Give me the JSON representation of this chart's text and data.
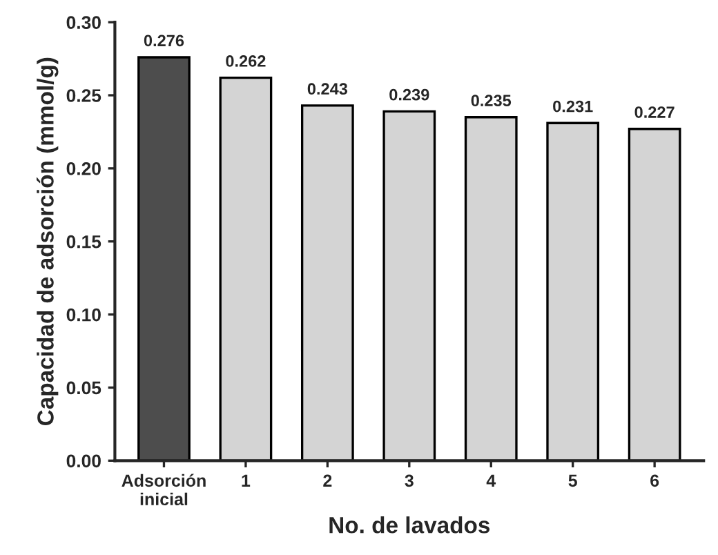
{
  "chart_data": {
    "type": "bar",
    "xlabel": "No. de lavados",
    "ylabel": "Capacidad de adsorción (mmol/g)",
    "categories": [
      "Adsorción\ninicial",
      "1",
      "2",
      "3",
      "4",
      "5",
      "6"
    ],
    "values": [
      0.276,
      0.262,
      0.243,
      0.239,
      0.235,
      0.231,
      0.227
    ],
    "colors": [
      "#4d4d4d",
      "#d4d4d4",
      "#d4d4d4",
      "#d4d4d4",
      "#d4d4d4",
      "#d4d4d4",
      "#d4d4d4"
    ],
    "ylim": [
      0,
      0.3
    ],
    "yticks": [
      {
        "value": 0,
        "label": "0.00"
      },
      {
        "value": 0.05,
        "label": "0.05"
      },
      {
        "value": 0.1,
        "label": "0.10"
      },
      {
        "value": 0.15,
        "label": "0.15"
      },
      {
        "value": 0.2,
        "label": "0.20"
      },
      {
        "value": 0.25,
        "label": "0.25"
      },
      {
        "value": 0.3,
        "label": "0.30"
      }
    ],
    "data_labels": true,
    "grid": false,
    "legend": false
  }
}
